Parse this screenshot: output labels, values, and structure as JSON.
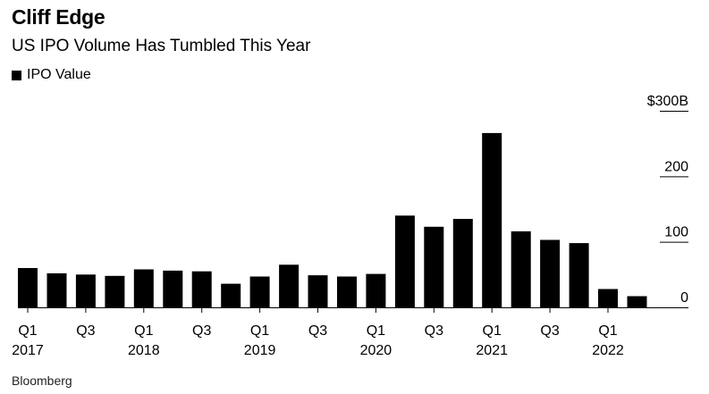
{
  "header": {
    "title": "Cliff Edge",
    "subtitle": "US IPO Volume Has Tumbled This Year"
  },
  "legend": {
    "label": "IPO Value",
    "color": "#000000"
  },
  "footer": {
    "source": "Bloomberg"
  },
  "chart_data": {
    "type": "bar",
    "title": "Cliff Edge",
    "subtitle": "US IPO Volume Has Tumbled This Year",
    "xlabel": "",
    "ylabel": "",
    "ylim": [
      0,
      300
    ],
    "y_ticks": [
      {
        "value": 300,
        "label": "$300B"
      },
      {
        "value": 200,
        "label": "200"
      },
      {
        "value": 100,
        "label": "100"
      },
      {
        "value": 0,
        "label": "0"
      }
    ],
    "x_tick_labels": [
      {
        "index": 0,
        "quarter": "Q1",
        "year": "2017"
      },
      {
        "index": 2,
        "quarter": "Q3",
        "year": ""
      },
      {
        "index": 4,
        "quarter": "Q1",
        "year": "2018"
      },
      {
        "index": 6,
        "quarter": "Q3",
        "year": ""
      },
      {
        "index": 8,
        "quarter": "Q1",
        "year": "2019"
      },
      {
        "index": 10,
        "quarter": "Q3",
        "year": ""
      },
      {
        "index": 12,
        "quarter": "Q1",
        "year": "2020"
      },
      {
        "index": 14,
        "quarter": "Q3",
        "year": ""
      },
      {
        "index": 16,
        "quarter": "Q1",
        "year": "2021"
      },
      {
        "index": 18,
        "quarter": "Q3",
        "year": ""
      },
      {
        "index": 20,
        "quarter": "Q1",
        "year": "2022"
      }
    ],
    "categories": [
      "Q1 2017",
      "Q2 2017",
      "Q3 2017",
      "Q4 2017",
      "Q1 2018",
      "Q2 2018",
      "Q3 2018",
      "Q4 2018",
      "Q1 2019",
      "Q2 2019",
      "Q3 2019",
      "Q4 2019",
      "Q1 2020",
      "Q2 2020",
      "Q3 2020",
      "Q4 2020",
      "Q1 2021",
      "Q2 2021",
      "Q3 2021",
      "Q4 2021",
      "Q1 2022",
      "Q2 2022"
    ],
    "series": [
      {
        "name": "IPO Value",
        "color": "#000000",
        "values": [
          60,
          52,
          50,
          48,
          58,
          56,
          55,
          36,
          47,
          65,
          49,
          47,
          51,
          140,
          123,
          135,
          266,
          116,
          103,
          98,
          28,
          17
        ]
      }
    ],
    "grid": false,
    "legend_position": "top-left"
  }
}
